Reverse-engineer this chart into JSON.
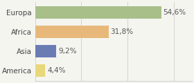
{
  "categories": [
    "America",
    "Asia",
    "Africa",
    "Europa"
  ],
  "values": [
    4.4,
    9.2,
    31.8,
    54.6
  ],
  "labels": [
    "4,4%",
    "9,2%",
    "31,8%",
    "54,6%"
  ],
  "colors": [
    "#e8d87a",
    "#6b7cb5",
    "#e8b87a",
    "#a8bf8a"
  ],
  "background_color": "#f5f5f0",
  "xlim": [
    0,
    68
  ],
  "bar_height": 0.62,
  "label_fontsize": 7.5,
  "tick_fontsize": 7.5,
  "gridlines": [
    0,
    20,
    40,
    60
  ]
}
